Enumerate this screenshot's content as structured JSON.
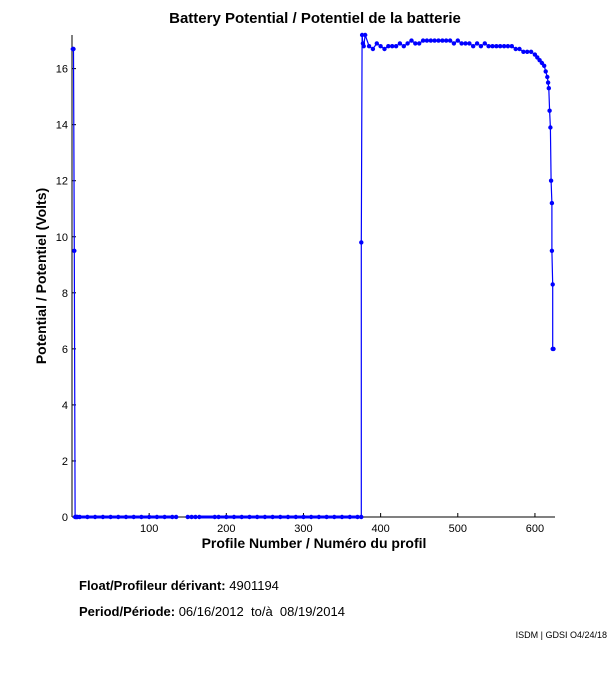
{
  "chart_data": {
    "type": "line",
    "title": "Battery Potential / Potentiel de la batterie",
    "xlabel": "Profile Number / Numéro du profil",
    "ylabel": "Potential / Potentiel (Volts)",
    "xlim": [
      0,
      626
    ],
    "ylim": [
      0,
      17.2
    ],
    "xticks": [
      100,
      200,
      300,
      400,
      500,
      600
    ],
    "yticks": [
      0,
      2,
      4,
      6,
      8,
      10,
      12,
      14,
      16
    ],
    "series_color": "#0000ff",
    "grid": false,
    "x": [
      1,
      2,
      3,
      4,
      5,
      6,
      7,
      10,
      20,
      30,
      40,
      50,
      60,
      70,
      80,
      90,
      100,
      110,
      120,
      130,
      135,
      150,
      155,
      160,
      165,
      185,
      190,
      200,
      210,
      220,
      230,
      240,
      250,
      260,
      270,
      280,
      290,
      300,
      310,
      320,
      330,
      340,
      350,
      360,
      370,
      375,
      375,
      376,
      377,
      378,
      380,
      385,
      390,
      395,
      400,
      405,
      410,
      415,
      420,
      425,
      430,
      435,
      440,
      445,
      450,
      455,
      460,
      465,
      470,
      475,
      480,
      485,
      490,
      495,
      500,
      505,
      510,
      515,
      520,
      525,
      530,
      535,
      540,
      545,
      550,
      555,
      560,
      565,
      570,
      575,
      580,
      585,
      590,
      595,
      600,
      603,
      606,
      609,
      612,
      614,
      616,
      617,
      618,
      619,
      620,
      621,
      622,
      622,
      623,
      623,
      624
    ],
    "y": [
      16.7,
      16.7,
      9.5,
      0,
      0,
      0,
      0,
      0,
      0,
      0,
      0,
      0,
      0,
      0,
      0,
      0,
      0,
      0,
      0,
      0,
      0,
      0,
      0,
      0,
      0,
      0,
      0,
      0,
      0,
      0,
      0,
      0,
      0,
      0,
      0,
      0,
      0,
      0,
      0,
      0,
      0,
      0,
      0,
      0,
      0,
      0,
      9.8,
      17.2,
      16.9,
      16.8,
      17.2,
      16.8,
      16.7,
      16.9,
      16.8,
      16.7,
      16.8,
      16.8,
      16.8,
      16.9,
      16.8,
      16.9,
      17.0,
      16.9,
      16.9,
      17.0,
      17.0,
      17.0,
      17.0,
      17.0,
      17.0,
      17.0,
      17.0,
      16.9,
      17.0,
      16.9,
      16.9,
      16.9,
      16.8,
      16.9,
      16.8,
      16.9,
      16.8,
      16.8,
      16.8,
      16.8,
      16.8,
      16.8,
      16.8,
      16.7,
      16.7,
      16.6,
      16.6,
      16.6,
      16.5,
      16.4,
      16.3,
      16.2,
      16.1,
      15.9,
      15.7,
      15.5,
      15.3,
      14.5,
      13.9,
      12.0,
      11.2,
      9.5,
      8.3,
      6.0,
      6.0
    ],
    "gaps_after_x": [
      135,
      160
    ]
  },
  "info": {
    "float_label": "Float/Profileur dérivant:",
    "float_value": "4901194",
    "period_label": "Period/Période:",
    "period_value": "06/16/2012  to/à  08/19/2014",
    "credit": "ISDM | GDSI O4/24/18"
  }
}
